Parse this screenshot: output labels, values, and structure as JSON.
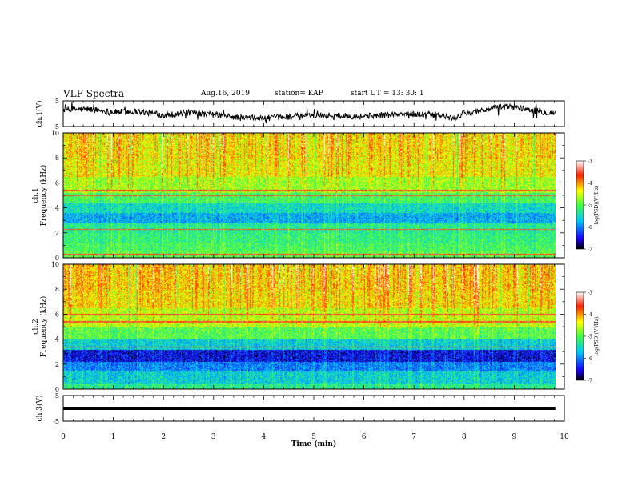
{
  "header": {
    "title": "VLF Spectra",
    "date": "Aug.16, 2019",
    "station": "station= KAP",
    "start": "start  UT  =   13: 30: 1"
  },
  "chart_data": [
    {
      "type": "line",
      "panel": "ch1-waveform",
      "ylabel": "ch.1(V)",
      "yticks": [
        "5",
        "-5"
      ],
      "ylim": [
        -5,
        5
      ],
      "xlim": [
        0,
        10
      ],
      "x_data_extent": [
        0,
        9.82
      ],
      "color": "#000000",
      "trend": [
        {
          "x": 0.0,
          "y": 1.5
        },
        {
          "x": 0.5,
          "y": 1.8
        },
        {
          "x": 1.0,
          "y": 0.6
        },
        {
          "x": 1.5,
          "y": 0.9
        },
        {
          "x": 2.0,
          "y": -0.6
        },
        {
          "x": 2.5,
          "y": 0.3
        },
        {
          "x": 3.0,
          "y": -0.4
        },
        {
          "x": 3.5,
          "y": -1.6
        },
        {
          "x": 4.0,
          "y": -1.8
        },
        {
          "x": 4.5,
          "y": -1.2
        },
        {
          "x": 5.0,
          "y": -0.5
        },
        {
          "x": 5.5,
          "y": -0.9
        },
        {
          "x": 6.0,
          "y": -1.0
        },
        {
          "x": 6.5,
          "y": -0.4
        },
        {
          "x": 7.0,
          "y": -0.1
        },
        {
          "x": 7.5,
          "y": -0.6
        },
        {
          "x": 7.8,
          "y": -2.0
        },
        {
          "x": 8.0,
          "y": 0.2
        },
        {
          "x": 8.5,
          "y": 1.8
        },
        {
          "x": 8.8,
          "y": 2.8
        },
        {
          "x": 9.0,
          "y": 2.6
        },
        {
          "x": 9.3,
          "y": 1.6
        },
        {
          "x": 9.6,
          "y": 0.6
        },
        {
          "x": 9.82,
          "y": 0.2
        }
      ]
    },
    {
      "type": "heatmap",
      "panel": "ch1-spectrogram",
      "ylabel": "ch.1\nFrequency  (kHz)",
      "yticks": [
        "0",
        "2",
        "4",
        "6",
        "8",
        "10"
      ],
      "ylim": [
        0,
        10
      ],
      "xlim": [
        0,
        10
      ],
      "x_data_extent": [
        0,
        9.82
      ],
      "colorbar": {
        "label": "log(PSD)(V²/Hz)",
        "ticks": [
          "-3",
          "-4",
          "-5",
          "-6",
          "-7"
        ],
        "range": [
          -7,
          -3
        ]
      },
      "bands": [
        {
          "f": [
            0.0,
            0.6
          ],
          "level": -5.0
        },
        {
          "f": [
            0.6,
            1.2
          ],
          "level": -5.1
        },
        {
          "f": [
            1.2,
            2.0
          ],
          "level": -5.2
        },
        {
          "f": [
            2.0,
            2.8
          ],
          "level": -5.3
        },
        {
          "f": [
            2.8,
            3.6
          ],
          "level": -5.8
        },
        {
          "f": [
            3.6,
            4.4
          ],
          "level": -5.5
        },
        {
          "f": [
            4.4,
            5.2
          ],
          "level": -5.1
        },
        {
          "f": [
            5.2,
            6.5
          ],
          "level": -4.7
        },
        {
          "f": [
            6.5,
            8.0
          ],
          "level": -4.4
        },
        {
          "f": [
            8.0,
            10.0
          ],
          "level": -4.3
        }
      ],
      "lines_khz": [
        0.3,
        2.3,
        5.0,
        5.4
      ]
    },
    {
      "type": "heatmap",
      "panel": "ch2-spectrogram",
      "ylabel": "ch.2\nFrequency  (kHz)",
      "yticks": [
        "0",
        "2",
        "4",
        "6",
        "8",
        "10"
      ],
      "ylim": [
        0,
        10
      ],
      "xlim": [
        0,
        10
      ],
      "x_data_extent": [
        0,
        9.82
      ],
      "colorbar": {
        "label": "log(PSD)(V²/Hz)",
        "ticks": [
          "-3",
          "-4",
          "-5",
          "-6",
          "-7"
        ],
        "range": [
          -7,
          -3
        ]
      },
      "bands": [
        {
          "f": [
            0.0,
            0.5
          ],
          "level": -5.3
        },
        {
          "f": [
            0.5,
            1.5
          ],
          "level": -5.6
        },
        {
          "f": [
            1.5,
            2.2
          ],
          "level": -6.0
        },
        {
          "f": [
            2.2,
            3.2
          ],
          "level": -6.5
        },
        {
          "f": [
            3.2,
            4.0
          ],
          "level": -5.6
        },
        {
          "f": [
            4.0,
            5.0
          ],
          "level": -5.0
        },
        {
          "f": [
            5.0,
            6.5
          ],
          "level": -4.6
        },
        {
          "f": [
            6.5,
            8.0
          ],
          "level": -4.3
        },
        {
          "f": [
            8.0,
            10.0
          ],
          "level": -4.2
        }
      ],
      "lines_khz": [
        3.4,
        5.4,
        6.0
      ]
    },
    {
      "type": "line",
      "panel": "ch3-waveform",
      "ylabel": "ch.3(V)",
      "yticks": [
        "5",
        "-5"
      ],
      "ylim": [
        -5,
        5
      ],
      "xlim": [
        0,
        10
      ],
      "x_data_extent": [
        0,
        9.82
      ],
      "constant_y": 0,
      "color": "#000000"
    }
  ],
  "xaxis": {
    "label": "Time  (min)",
    "ticks": [
      "0",
      "1",
      "2",
      "3",
      "4",
      "5",
      "6",
      "7",
      "8",
      "9",
      "10"
    ]
  },
  "colors": {
    "cmap": [
      "#000000",
      "#1a00ff",
      "#00c8ff",
      "#40ff40",
      "#ffff00",
      "#ff2000",
      "#ffffff"
    ]
  }
}
